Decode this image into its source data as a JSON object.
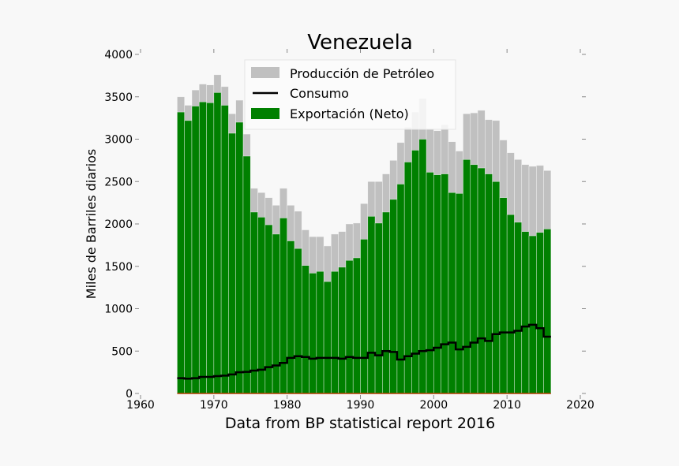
{
  "chart_data": {
    "type": "bar",
    "title": "Venezuela",
    "xlabel": "Data from BP statistical report 2016",
    "ylabel": "Miles de Barriles diarios",
    "xlim": [
      1960,
      2020
    ],
    "ylim": [
      0,
      4000
    ],
    "xticks": [
      "1960",
      "1970",
      "1980",
      "1990",
      "2000",
      "2010",
      "2020"
    ],
    "yticks": [
      "0",
      "500",
      "1000",
      "1500",
      "2000",
      "2500",
      "3000",
      "3500",
      "4000"
    ],
    "grid": false,
    "legend_placement": "top-center",
    "years": [
      1965,
      1966,
      1967,
      1968,
      1969,
      1970,
      1971,
      1972,
      1973,
      1974,
      1975,
      1976,
      1977,
      1978,
      1979,
      1980,
      1981,
      1982,
      1983,
      1984,
      1985,
      1986,
      1987,
      1988,
      1989,
      1990,
      1991,
      1992,
      1993,
      1994,
      1995,
      1996,
      1997,
      1998,
      1999,
      2000,
      2001,
      2002,
      2003,
      2004,
      2005,
      2006,
      2007,
      2008,
      2009,
      2010,
      2011,
      2012,
      2013,
      2014,
      2015
    ],
    "series": [
      {
        "name": "Producción de Petróleo",
        "type": "bar",
        "color": "#c0c0c0",
        "values": [
          3500,
          3400,
          3580,
          3650,
          3640,
          3760,
          3620,
          3300,
          3460,
          3060,
          2420,
          2370,
          2310,
          2220,
          2420,
          2220,
          2150,
          1930,
          1850,
          1850,
          1740,
          1880,
          1910,
          2000,
          2010,
          2240,
          2500,
          2500,
          2590,
          2750,
          2960,
          3140,
          3320,
          3480,
          3120,
          3100,
          3170,
          2970,
          2860,
          3300,
          3310,
          3340,
          3230,
          3220,
          2990,
          2840,
          2760,
          2700,
          2680,
          2690,
          2630
        ]
      },
      {
        "name": "Consumo",
        "type": "step-line",
        "color": "#000000",
        "values": [
          180,
          175,
          180,
          195,
          195,
          205,
          210,
          225,
          250,
          255,
          270,
          280,
          310,
          330,
          360,
          420,
          440,
          430,
          410,
          420,
          420,
          420,
          410,
          430,
          420,
          420,
          480,
          450,
          500,
          490,
          400,
          440,
          470,
          500,
          510,
          540,
          580,
          600,
          520,
          550,
          600,
          650,
          620,
          700,
          720,
          720,
          740,
          790,
          810,
          770,
          670
        ]
      },
      {
        "name": "Exportación (Neto)",
        "type": "bar",
        "color": "#008000",
        "values": [
          3320,
          3220,
          3390,
          3440,
          3430,
          3550,
          3400,
          3070,
          3200,
          2800,
          2140,
          2080,
          1990,
          1880,
          2070,
          1800,
          1710,
          1510,
          1420,
          1440,
          1320,
          1440,
          1490,
          1570,
          1600,
          1820,
          2090,
          2010,
          2140,
          2290,
          2470,
          2730,
          2870,
          3000,
          2610,
          2580,
          2590,
          2370,
          2360,
          2760,
          2700,
          2660,
          2590,
          2500,
          2310,
          2110,
          2020,
          1910,
          1860,
          1900,
          1940
        ]
      }
    ]
  }
}
